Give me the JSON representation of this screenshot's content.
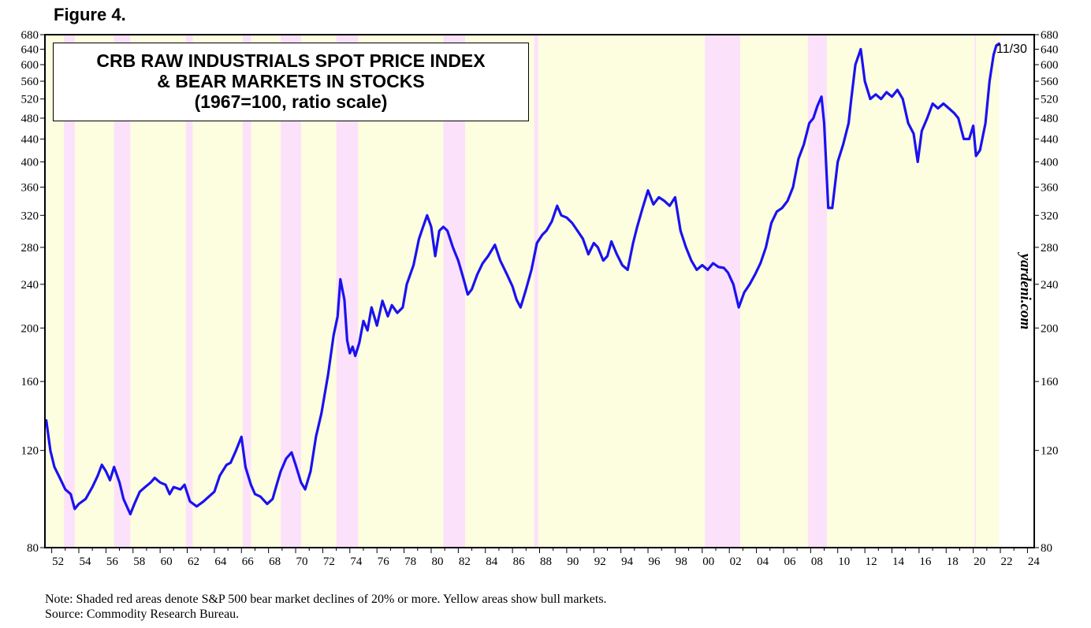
{
  "figure_label": "Figure 4.",
  "notes": {
    "line1": "Note: Shaded red areas denote S&P 500 bear market declines of 20% or more. Yellow areas show bull markets.",
    "line2": "Source: Commodity Research Bureau."
  },
  "watermark": "yardeni.com",
  "colors": {
    "line": "#1a12f0",
    "bull": "#fdfde0",
    "bear": "#fce1fb"
  },
  "chart_data": {
    "type": "line",
    "title": [
      "CRB RAW INDUSTRIALS SPOT PRICE INDEX",
      "& BEAR MARKETS IN STOCKS",
      "(1967=100, ratio scale)"
    ],
    "last_label": "11/30",
    "y_scale": "log",
    "ylim": [
      80,
      680
    ],
    "y_ticks": [
      80,
      120,
      160,
      200,
      240,
      280,
      320,
      360,
      400,
      440,
      480,
      520,
      560,
      600,
      640,
      680
    ],
    "xlim": [
      1951.5,
      2024.5
    ],
    "x_tick_labels": [
      "52",
      "54",
      "56",
      "58",
      "60",
      "62",
      "64",
      "66",
      "68",
      "70",
      "72",
      "74",
      "76",
      "78",
      "80",
      "82",
      "84",
      "86",
      "88",
      "90",
      "92",
      "94",
      "96",
      "98",
      "00",
      "02",
      "04",
      "06",
      "08",
      "10",
      "12",
      "14",
      "16",
      "18",
      "20",
      "22",
      "24"
    ],
    "x_tick_years": [
      1952,
      1954,
      1956,
      1958,
      1960,
      1962,
      1964,
      1966,
      1968,
      1970,
      1972,
      1974,
      1976,
      1978,
      1980,
      1982,
      1984,
      1986,
      1988,
      1990,
      1992,
      1994,
      1996,
      1998,
      2000,
      2002,
      2004,
      2006,
      2008,
      2010,
      2012,
      2014,
      2016,
      2018,
      2020,
      2022,
      2024
    ],
    "bull_range": [
      1951.6,
      2021.9
    ],
    "bear_markets": [
      [
        1952.9,
        1953.7
      ],
      [
        1956.6,
        1957.8
      ],
      [
        1961.9,
        1962.4
      ],
      [
        1966.1,
        1966.7
      ],
      [
        1968.9,
        1970.4
      ],
      [
        1973.0,
        1974.6
      ],
      [
        1980.9,
        1982.5
      ],
      [
        1987.6,
        1987.9
      ],
      [
        2000.2,
        2002.8
      ],
      [
        2007.8,
        2009.2
      ],
      [
        2020.1,
        2020.2
      ]
    ],
    "series": [
      {
        "name": "CRB Raw Industrials Spot Price Index",
        "x": [
          1951.6,
          1951.9,
          1952.2,
          1952.6,
          1953.0,
          1953.4,
          1953.7,
          1954.0,
          1954.5,
          1955.0,
          1955.4,
          1955.7,
          1956.0,
          1956.3,
          1956.6,
          1957.0,
          1957.3,
          1957.8,
          1958.1,
          1958.5,
          1958.9,
          1959.3,
          1959.6,
          1960.0,
          1960.4,
          1960.7,
          1961.0,
          1961.5,
          1961.8,
          1962.2,
          1962.7,
          1963.2,
          1963.6,
          1964.0,
          1964.4,
          1964.9,
          1965.2,
          1965.6,
          1966.0,
          1966.3,
          1966.7,
          1967.0,
          1967.4,
          1967.9,
          1968.3,
          1968.6,
          1968.9,
          1969.3,
          1969.7,
          1970.0,
          1970.4,
          1970.7,
          1971.1,
          1971.5,
          1971.9,
          1972.4,
          1972.8,
          1973.1,
          1973.3,
          1973.6,
          1973.8,
          1974.0,
          1974.2,
          1974.4,
          1974.7,
          1975.0,
          1975.3,
          1975.6,
          1976.0,
          1976.4,
          1976.8,
          1977.1,
          1977.5,
          1977.9,
          1978.2,
          1978.7,
          1979.1,
          1979.4,
          1979.7,
          1980.0,
          1980.3,
          1980.6,
          1980.9,
          1981.2,
          1981.6,
          1982.0,
          1982.4,
          1982.7,
          1983.0,
          1983.4,
          1983.8,
          1984.2,
          1984.7,
          1985.1,
          1985.6,
          1986.0,
          1986.3,
          1986.6,
          1987.0,
          1987.4,
          1987.8,
          1988.2,
          1988.5,
          1988.9,
          1989.3,
          1989.6,
          1990.0,
          1990.4,
          1990.8,
          1991.2,
          1991.6,
          1992.0,
          1992.3,
          1992.7,
          1993.0,
          1993.3,
          1993.7,
          1994.1,
          1994.5,
          1994.9,
          1995.2,
          1995.6,
          1996.0,
          1996.4,
          1996.8,
          1997.2,
          1997.6,
          1998.0,
          1998.4,
          1998.8,
          1999.2,
          1999.6,
          2000.0,
          2000.4,
          2000.8,
          2001.2,
          2001.6,
          2001.9,
          2002.3,
          2002.7,
          2003.1,
          2003.5,
          2003.9,
          2004.3,
          2004.7,
          2005.1,
          2005.5,
          2005.9,
          2006.3,
          2006.7,
          2007.1,
          2007.5,
          2007.9,
          2008.2,
          2008.5,
          2008.8,
          2009.0,
          2009.3,
          2009.6,
          2010.0,
          2010.4,
          2010.8,
          2011.0,
          2011.3,
          2011.7,
          2012.0,
          2012.4,
          2012.8,
          2013.2,
          2013.6,
          2014.0,
          2014.4,
          2014.8,
          2015.2,
          2015.6,
          2015.9,
          2016.2,
          2016.6,
          2017.0,
          2017.4,
          2017.8,
          2018.2,
          2018.6,
          2018.9,
          2019.3,
          2019.7,
          2020.0,
          2020.2,
          2020.5,
          2020.9,
          2021.2,
          2021.5,
          2021.7,
          2021.9
        ],
        "values": [
          136,
          120,
          112,
          107,
          102,
          100,
          94,
          96,
          98,
          103,
          108,
          113,
          110,
          106,
          112,
          105,
          98,
          92,
          96,
          101,
          103,
          105,
          107,
          105,
          104,
          100,
          103,
          102,
          104,
          97,
          95,
          97,
          99,
          101,
          108,
          113,
          114,
          120,
          127,
          112,
          104,
          100,
          99,
          96,
          98,
          104,
          110,
          116,
          119,
          113,
          105,
          102,
          110,
          127,
          140,
          165,
          194,
          210,
          245,
          225,
          190,
          180,
          185,
          178,
          188,
          206,
          198,
          218,
          202,
          224,
          210,
          220,
          213,
          218,
          240,
          260,
          290,
          305,
          320,
          305,
          270,
          300,
          305,
          300,
          280,
          265,
          245,
          230,
          235,
          250,
          262,
          270,
          283,
          265,
          250,
          238,
          225,
          218,
          235,
          255,
          285,
          295,
          300,
          312,
          333,
          320,
          317,
          310,
          300,
          290,
          272,
          285,
          280,
          265,
          270,
          287,
          272,
          260,
          255,
          285,
          305,
          330,
          355,
          335,
          345,
          340,
          333,
          345,
          300,
          280,
          265,
          255,
          260,
          255,
          262,
          258,
          257,
          252,
          240,
          218,
          232,
          240,
          250,
          262,
          280,
          310,
          325,
          330,
          340,
          360,
          405,
          430,
          470,
          480,
          505,
          525,
          470,
          330,
          330,
          400,
          430,
          470,
          520,
          600,
          640,
          560,
          520,
          530,
          520,
          535,
          525,
          540,
          520,
          470,
          450,
          400,
          455,
          480,
          510,
          500,
          510,
          500,
          490,
          480,
          440,
          440,
          465,
          410,
          420,
          470,
          560,
          625,
          650,
          655
        ]
      }
    ]
  }
}
